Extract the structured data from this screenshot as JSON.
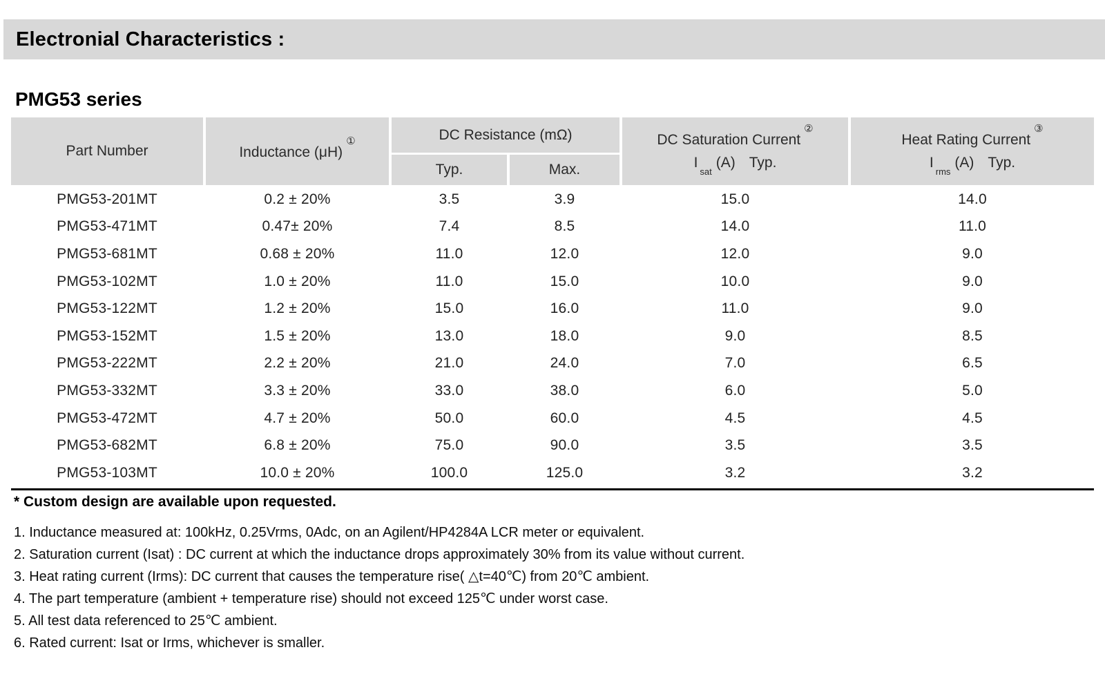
{
  "page": {
    "title_bar": "Electronial Characteristics :",
    "series_heading": "PMG53 series"
  },
  "colors": {
    "title_bar_gray": "#d8d8d8",
    "header_cell_gray": "#d9d9d9",
    "rule_black": "#000000"
  },
  "table": {
    "headers": {
      "part_number": "Part Number",
      "inductance": {
        "label": "Inductance (μH)",
        "sup": "①"
      },
      "dc_resistance": {
        "label": "DC Resistance (mΩ)",
        "sub_typ": "Typ.",
        "sub_max": "Max."
      },
      "dc_saturation": {
        "label": "DC Saturation Current",
        "sup": "②",
        "unit_prefix": "I",
        "unit_sub": "sat",
        "unit_paren": "(A)",
        "unit_typ": "Typ."
      },
      "heat_rating": {
        "label": "Heat Rating Current",
        "sup": "③",
        "unit_prefix": "I",
        "unit_sub": "rms",
        "unit_paren": "(A)",
        "unit_typ": "Typ."
      }
    },
    "rows": [
      {
        "part": "PMG53-201MT",
        "inductance": "0.2 ± 20%",
        "typ": "3.5",
        "max": "3.9",
        "isat": "15.0",
        "irms": "14.0"
      },
      {
        "part": "PMG53-471MT",
        "inductance": "0.47± 20%",
        "typ": "7.4",
        "max": "8.5",
        "isat": "14.0",
        "irms": "11.0"
      },
      {
        "part": "PMG53-681MT",
        "inductance": "0.68 ± 20%",
        "typ": "11.0",
        "max": "12.0",
        "isat": "12.0",
        "irms": "9.0"
      },
      {
        "part": "PMG53-102MT",
        "inductance": "1.0 ± 20%",
        "typ": "11.0",
        "max": "15.0",
        "isat": "10.0",
        "irms": "9.0"
      },
      {
        "part": "PMG53-122MT",
        "inductance": "1.2 ± 20%",
        "typ": "15.0",
        "max": "16.0",
        "isat": "11.0",
        "irms": "9.0"
      },
      {
        "part": "PMG53-152MT",
        "inductance": "1.5 ± 20%",
        "typ": "13.0",
        "max": "18.0",
        "isat": "9.0",
        "irms": "8.5"
      },
      {
        "part": "PMG53-222MT",
        "inductance": "2.2 ± 20%",
        "typ": "21.0",
        "max": "24.0",
        "isat": "7.0",
        "irms": "6.5"
      },
      {
        "part": "PMG53-332MT",
        "inductance": "3.3 ± 20%",
        "typ": "33.0",
        "max": "38.0",
        "isat": "6.0",
        "irms": "5.0"
      },
      {
        "part": "PMG53-472MT",
        "inductance": "4.7 ± 20%",
        "typ": "50.0",
        "max": "60.0",
        "isat": "4.5",
        "irms": "4.5"
      },
      {
        "part": "PMG53-682MT",
        "inductance": "6.8 ± 20%",
        "typ": "75.0",
        "max": "90.0",
        "isat": "3.5",
        "irms": "3.5"
      },
      {
        "part": "PMG53-103MT",
        "inductance": "10.0 ± 20%",
        "typ": "100.0",
        "max": "125.0",
        "isat": "3.2",
        "irms": "3.2"
      }
    ]
  },
  "notes": {
    "custom": "* Custom design are available upon requested.",
    "items": [
      "1. Inductance measured at: 100kHz, 0.25Vrms, 0Adc, on an Agilent/HP4284A LCR meter or equivalent.",
      "2. Saturation current (Isat) : DC current at which the inductance drops approximately 30% from its value without current.",
      "3. Heat rating current (Irms): DC current that causes the temperature rise( △t=40℃) from 20℃ ambient.",
      "4. The part temperature (ambient + temperature rise) should not exceed 125℃ under worst case.",
      "5. All test data referenced to 25℃ ambient.",
      "6. Rated current: Isat or Irms, whichever is smaller."
    ]
  }
}
